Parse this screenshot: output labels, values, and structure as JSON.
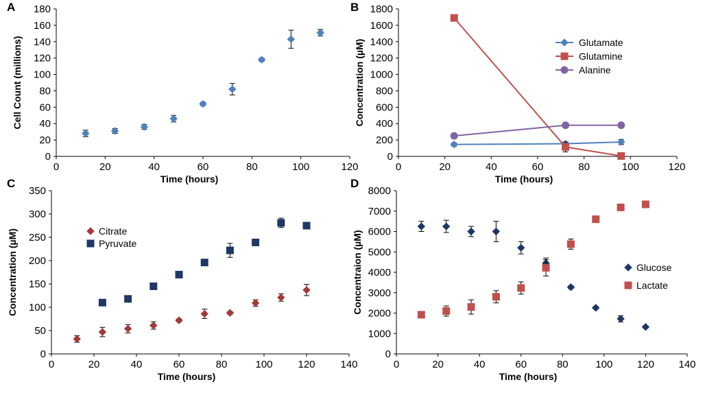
{
  "chart_data": [
    {
      "panel": "A",
      "type": "scatter",
      "xlabel": "Time (hours)",
      "ylabel": "Cell Count (millions)",
      "xlim": [
        0,
        120
      ],
      "ylim": [
        0,
        180
      ],
      "xticks": [
        0,
        20,
        40,
        60,
        80,
        100,
        120
      ],
      "yticks": [
        0,
        20,
        40,
        60,
        80,
        100,
        120,
        140,
        160,
        180
      ],
      "series": [
        {
          "name": "Cell count",
          "marker": "diamond",
          "color": "#4f81bd",
          "line": false,
          "x": [
            12,
            24,
            36,
            48,
            60,
            72,
            84,
            96,
            108
          ],
          "y": [
            28,
            31,
            36,
            46,
            64,
            82,
            118,
            143,
            151
          ],
          "err": [
            4,
            3,
            3,
            4,
            2,
            7,
            2,
            11,
            4
          ]
        }
      ]
    },
    {
      "panel": "B",
      "type": "line",
      "xlabel": "Time (hours)",
      "ylabel": "Concentration (µM)",
      "xlim": [
        0,
        120
      ],
      "ylim": [
        0,
        1800
      ],
      "xticks": [
        0,
        20,
        40,
        60,
        80,
        100,
        120
      ],
      "yticks": [
        0,
        200,
        400,
        600,
        800,
        1000,
        1200,
        1400,
        1600,
        1800
      ],
      "legend_position": "top-right",
      "series": [
        {
          "name": "Glutamate",
          "marker": "diamond",
          "color": "#4f81bd",
          "line": true,
          "x": [
            24,
            72,
            96
          ],
          "y": [
            145,
            155,
            175
          ],
          "err": [
            20,
            20,
            30
          ]
        },
        {
          "name": "Glutamine",
          "marker": "square",
          "color": "#c0504d",
          "line": true,
          "x": [
            24,
            72,
            96
          ],
          "y": [
            1690,
            115,
            5
          ],
          "err": [
            15,
            60,
            10
          ]
        },
        {
          "name": "Alanine",
          "marker": "circle",
          "color": "#8064a2",
          "line": true,
          "x": [
            24,
            72,
            96
          ],
          "y": [
            250,
            380,
            380
          ],
          "err": [
            15,
            30,
            20
          ]
        }
      ]
    },
    {
      "panel": "C",
      "type": "scatter",
      "xlabel": "Time (hours)",
      "ylabel": "Concentration (µM)",
      "xlim": [
        0,
        140
      ],
      "ylim": [
        0,
        350
      ],
      "xticks": [
        0,
        20,
        40,
        60,
        80,
        100,
        120,
        140
      ],
      "yticks": [
        0,
        50,
        100,
        150,
        200,
        250,
        300,
        350
      ],
      "legend_position": "middle-left",
      "series": [
        {
          "name": "Citrate",
          "marker": "diamond",
          "color": "#a33a3a",
          "line": false,
          "x": [
            12,
            24,
            36,
            48,
            60,
            72,
            84,
            96,
            108,
            120
          ],
          "y": [
            32,
            47,
            54,
            61,
            72,
            86,
            88,
            109,
            121,
            137
          ],
          "err": [
            7,
            10,
            9,
            8,
            3,
            10,
            3,
            7,
            8,
            12
          ]
        },
        {
          "name": "Pyruvate",
          "marker": "square",
          "color": "#1f3864",
          "line": false,
          "x": [
            24,
            36,
            48,
            60,
            72,
            84,
            96,
            108,
            120
          ],
          "y": [
            110,
            118,
            145,
            170,
            196,
            222,
            239,
            281,
            275
          ],
          "err": [
            3,
            3,
            3,
            3,
            3,
            15,
            3,
            10,
            6
          ]
        }
      ]
    },
    {
      "panel": "D",
      "type": "scatter",
      "xlabel": "Time (hours)",
      "ylabel": "Concentraion (µM)",
      "xlim": [
        0,
        140
      ],
      "ylim": [
        0,
        8000
      ],
      "xticks": [
        0,
        20,
        40,
        60,
        80,
        100,
        120,
        140
      ],
      "yticks": [
        0,
        1000,
        2000,
        3000,
        4000,
        5000,
        6000,
        7000,
        8000
      ],
      "legend_position": "middle-right",
      "series": [
        {
          "name": "Glucose",
          "marker": "diamond",
          "color": "#1f3864",
          "line": false,
          "x": [
            12,
            24,
            36,
            48,
            60,
            72,
            84,
            96,
            108,
            120
          ],
          "y": [
            6250,
            6250,
            6000,
            6000,
            5200,
            4450,
            3270,
            2260,
            1720,
            1320
          ],
          "err": [
            250,
            300,
            250,
            500,
            300,
            250,
            80,
            60,
            150,
            50
          ]
        },
        {
          "name": "Lactate",
          "marker": "square",
          "color": "#c0504d",
          "line": false,
          "x": [
            12,
            24,
            36,
            48,
            60,
            72,
            84,
            96,
            108,
            120
          ],
          "y": [
            1920,
            2100,
            2300,
            2800,
            3230,
            4220,
            5380,
            6600,
            7180,
            7330
          ],
          "err": [
            60,
            250,
            350,
            300,
            300,
            400,
            250,
            80,
            60,
            150
          ]
        }
      ]
    }
  ]
}
